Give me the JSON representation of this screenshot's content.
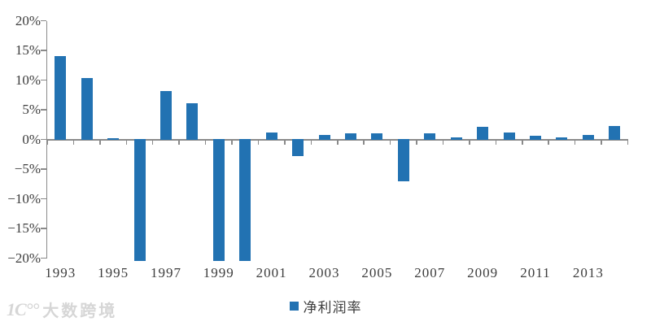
{
  "chart_data": {
    "type": "bar",
    "title": "",
    "x": [
      1993,
      1994,
      1995,
      1996,
      1997,
      1998,
      1999,
      2000,
      2001,
      2002,
      2003,
      2004,
      2005,
      2006,
      2007,
      2008,
      2009,
      2010,
      2011,
      2012,
      2013,
      2014
    ],
    "series": [
      {
        "name": "净利润率",
        "values": [
          14.0,
          10.3,
          0.2,
          -20.6,
          8.2,
          6.1,
          -20.6,
          -20.6,
          1.1,
          -2.8,
          0.7,
          1.0,
          1.0,
          -7.1,
          1.0,
          0.4,
          2.1,
          1.2,
          0.6,
          0.3,
          0.8,
          2.2
        ]
      }
    ],
    "clipped_years": [
      1996,
      1999,
      2000
    ],
    "ylim": [
      -20,
      20
    ],
    "y_tick_step": 5,
    "y_ticks": [
      "20%",
      "15%",
      "10%",
      "5%",
      "0%",
      "−5%",
      "−10%",
      "−15%",
      "−20%"
    ],
    "x_tick_labels": [
      "1993",
      "1995",
      "1997",
      "1999",
      "2001",
      "2003",
      "2005",
      "2007",
      "2009",
      "2011",
      "2013"
    ],
    "grid": false,
    "legend_position": "bottom",
    "colors": {
      "bar": "#2272b2",
      "axis": "#8a8a8a",
      "text": "#3d3d3d",
      "watermark": "#d6d6d6"
    }
  },
  "legend": {
    "label": "净利润率"
  },
  "watermark": {
    "logo": "1C°°",
    "text": "大数跨境"
  }
}
